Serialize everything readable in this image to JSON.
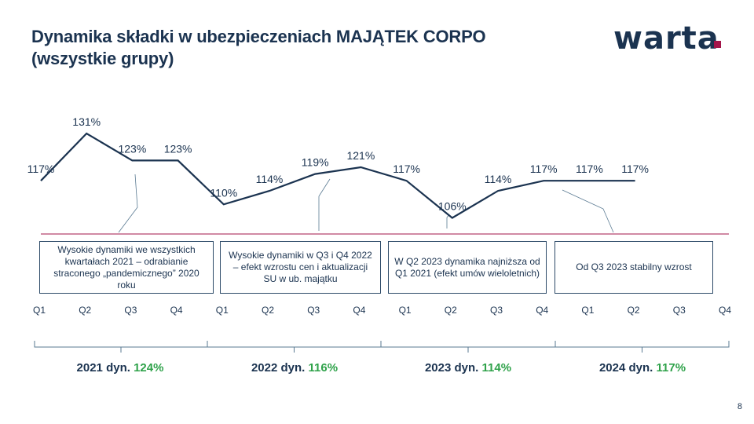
{
  "header": {
    "title_line1": "Dynamika składki w ubezpieczeniach MAJĄTEK CORPO",
    "title_line2": "(wszystkie grupy)",
    "logo": "warta."
  },
  "page_number": "8",
  "colors": {
    "navy": "#1b3350",
    "green": "#2fa24a",
    "brand_accent": "#a3154a",
    "divider": "#a3154a"
  },
  "chart_data": {
    "type": "line",
    "x": [
      "Q1",
      "Q2",
      "Q3",
      "Q4",
      "Q1",
      "Q2",
      "Q3",
      "Q4",
      "Q1",
      "Q2",
      "Q3",
      "Q4",
      "Q1",
      "Q2",
      "Q3",
      "Q4"
    ],
    "series": [
      {
        "values": [
          117,
          131,
          123,
          123,
          110,
          114,
          119,
          121,
          117,
          106,
          114,
          117,
          117,
          117,
          null,
          null
        ],
        "labels": [
          "117%",
          "131%",
          "123%",
          "123%",
          "110%",
          "114%",
          "119%",
          "121%",
          "117%",
          "106%",
          "114%",
          "117%",
          "117%",
          "117%",
          "",
          ""
        ]
      }
    ],
    "grid": false,
    "ylim": [
      100,
      135
    ]
  },
  "annotations": [
    {
      "text": "Wysokie dynamiki we wszystkich kwartałach 2021 – odrabianie straconego „pandemicznego” 2020 roku"
    },
    {
      "text": "Wysokie dynamiki w Q3 i Q4 2022 – efekt wzrostu cen i aktualizacji SU w ub. majątku"
    },
    {
      "text": "W Q2 2023 dynamika najniższa od Q1 2021 (efekt umów wieloletnich)"
    },
    {
      "text": "Od Q3 2023 stabilny wzrost"
    }
  ],
  "years": [
    {
      "label": "2021 dyn.",
      "pct": "124%"
    },
    {
      "label": "2022 dyn.",
      "pct": "116%"
    },
    {
      "label": "2023 dyn.",
      "pct": "114%"
    },
    {
      "label": "2024 dyn.",
      "pct": "117%"
    }
  ]
}
